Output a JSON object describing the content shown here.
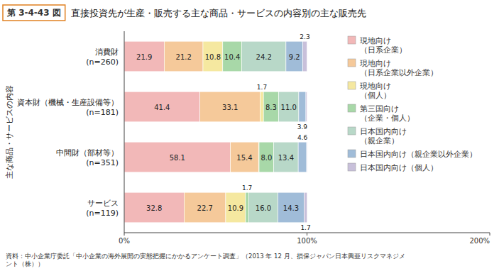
{
  "chart_data": {
    "type": "bar",
    "orientation": "horizontal",
    "stacked": true,
    "title": "直接投資先が生産・販売する主な商品・サービスの内容別の主な販売先",
    "annotations": [
      "第 3-4-43 図",
      "資料：中小企業庁委託「中小企業の海外展開の実態把握にかかるアンケート調査」（2013 年 12 月、損保ジャパン日本興亜リスクマネジメ\nント（株））"
    ],
    "ylabel": "主な商品・サービスの内容",
    "categories": [
      "消費財\n(n=260)",
      "資本財（機械・生産設備等）\n(n=181)",
      "中間財（部材等）\n(n=351)",
      "サービス\n(n=119)"
    ],
    "series": [
      {
        "name": "現地向け\n（日系企業）",
        "color": "#f2b8b8",
        "values": [
          21.9,
          41.4,
          58.1,
          32.8
        ],
        "value_labels": [
          "21.9",
          "41.4",
          "58.1",
          "32.8"
        ]
      },
      {
        "name": "現地向け\n（日系企業以外企業）",
        "color": "#f5c99a",
        "values": [
          21.2,
          33.1,
          15.4,
          22.7
        ],
        "value_labels": [
          "21.2",
          "33.1",
          "15.4",
          "22.7"
        ]
      },
      {
        "name": "現地向け\n（個人）",
        "color": "#f5e8a0",
        "values": [
          10.8,
          1.7,
          0.3,
          10.9
        ],
        "value_labels": [
          "10.8",
          "1.7",
          null,
          "10.9"
        ]
      },
      {
        "name": "第三国向け\n（企業・個人）",
        "color": "#a8d8a8",
        "values": [
          10.4,
          8.3,
          8.0,
          1.7
        ],
        "value_labels": [
          "10.4",
          "8.3",
          "8.0",
          "1.7"
        ]
      },
      {
        "name": "日本国内向け\n（親企業）",
        "color": "#b8d8c8",
        "values": [
          24.2,
          11.0,
          13.4,
          16.0
        ],
        "value_labels": [
          "24.2",
          "11.0",
          "13.4",
          "16.0"
        ]
      },
      {
        "name": "日本国内向け（親企業以外企業）",
        "color": "#a0bcd8",
        "values": [
          9.2,
          3.9,
          4.6,
          14.3
        ],
        "value_labels": [
          "9.2",
          "3.9",
          "4.6",
          "14.3"
        ]
      },
      {
        "name": "日本国内向け（個人）",
        "color": "#c8c0da",
        "values": [
          2.3,
          0.6,
          0.3,
          1.7
        ],
        "value_labels": [
          "2.3",
          null,
          null,
          "1.7"
        ]
      }
    ],
    "xlim": [
      0,
      200
    ],
    "xticks": [
      {
        "value": 0,
        "label": "0%"
      },
      {
        "value": 100,
        "label": "100%"
      },
      {
        "value": 200,
        "label": "200%"
      }
    ],
    "data_labels": true,
    "legend": "upper right",
    "grid": false
  }
}
